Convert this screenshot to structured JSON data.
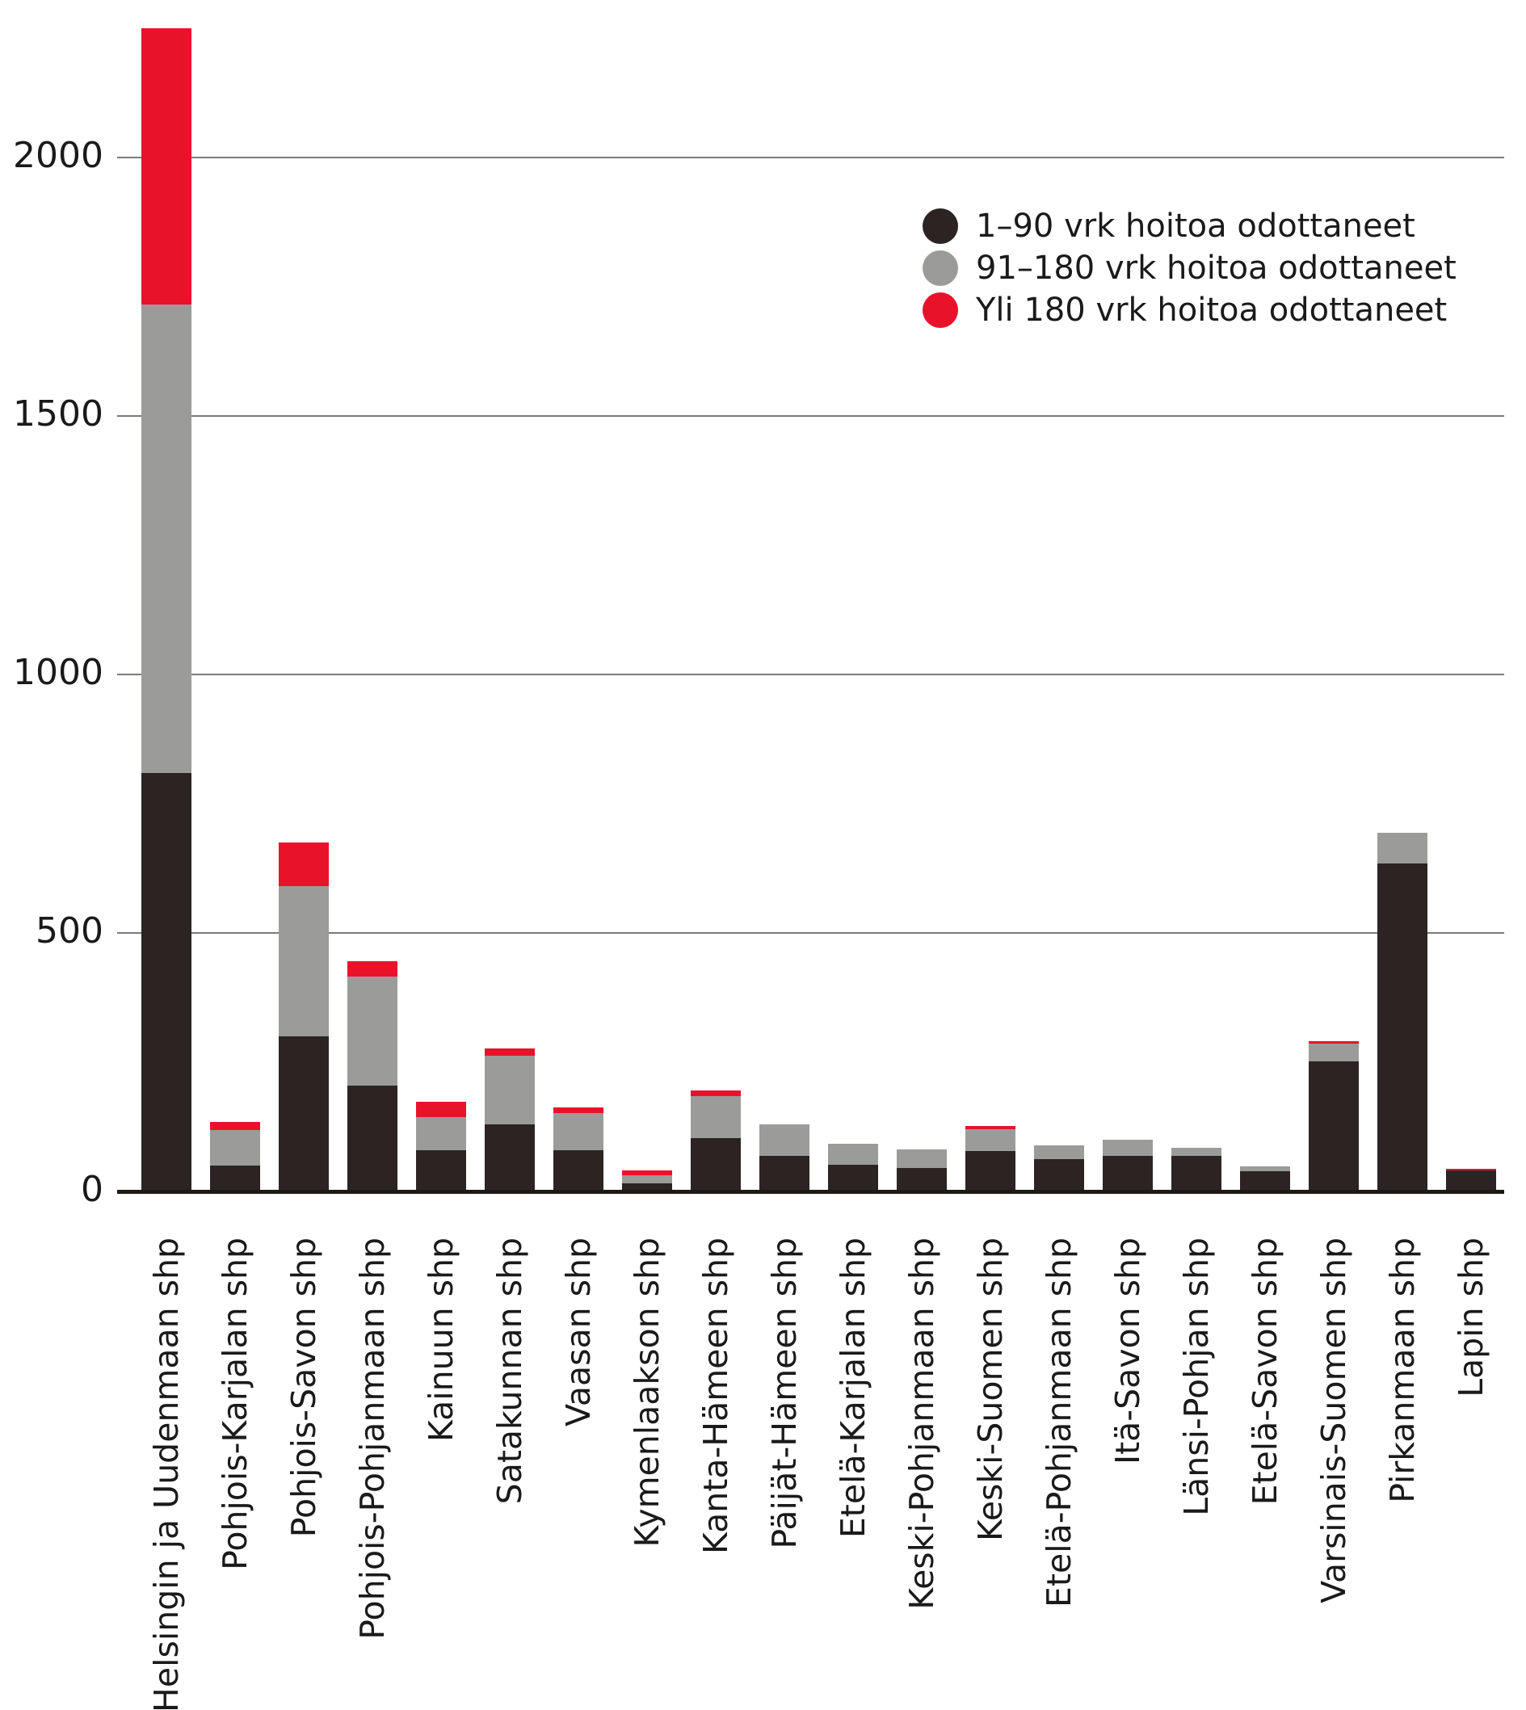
{
  "colors": {
    "background": "#ffffff",
    "text": "#1a1a1a",
    "gridline": "#7b7b7b",
    "axis": "#1c1917",
    "series_black": "#2b2423",
    "series_gray": "#9b9b99",
    "series_red": "#e8132b"
  },
  "chart_data": {
    "type": "bar",
    "stacked": true,
    "title": "",
    "xlabel": "",
    "ylabel": "",
    "grid": "horizontal",
    "legend_position": "upper-right",
    "yticks": [
      0,
      500,
      1000,
      1500,
      2000
    ],
    "ylim": [
      0,
      2253
    ],
    "categories": [
      "Helsingin ja Uudenmaan shp",
      "Pohjois-Karjalan shp",
      "Pohjois-Savon shp",
      "Pohjois-Pohjanmaan shp",
      "Kainuun shp",
      "Satakunnan shp",
      "Vaasan shp",
      "Kymenlaakson shp",
      "Kanta-Hämeen shp",
      "Päijät-Hämeen shp",
      "Etelä-Karjalan shp",
      "Keski-Pohjanmaan shp",
      "Keski-Suomen shp",
      "Etelä-Pohjanmaan shp",
      "Itä-Savon shp",
      "Länsi-Pohjan shp",
      "Etelä-Savon shp",
      "Varsinais-Suomen shp",
      "Pirkanmaan shp",
      "Lapin shp"
    ],
    "series": [
      {
        "name": "1–90 vrk hoitoa odottaneet",
        "color": "#2b2423",
        "values": [
          810,
          50,
          300,
          205,
          80,
          129,
          80,
          15,
          103,
          69,
          52,
          46,
          78,
          62,
          69,
          68,
          39,
          252,
          635,
          40
        ]
      },
      {
        "name": "91–180 vrk hoitoa odottaneet",
        "color": "#9b9b99",
        "values": [
          905,
          69,
          290,
          211,
          64,
          133,
          71,
          17,
          82,
          60,
          40,
          35,
          42,
          27,
          31,
          17,
          10,
          34,
          59,
          0
        ]
      },
      {
        "name": "Yli 180 vrk hoitoa odottaneet",
        "color": "#e8132b",
        "values": [
          535,
          15,
          85,
          29,
          30,
          14,
          11,
          9,
          11,
          0,
          0,
          0,
          7,
          0,
          0,
          0,
          0,
          4,
          0,
          3
        ]
      }
    ]
  }
}
